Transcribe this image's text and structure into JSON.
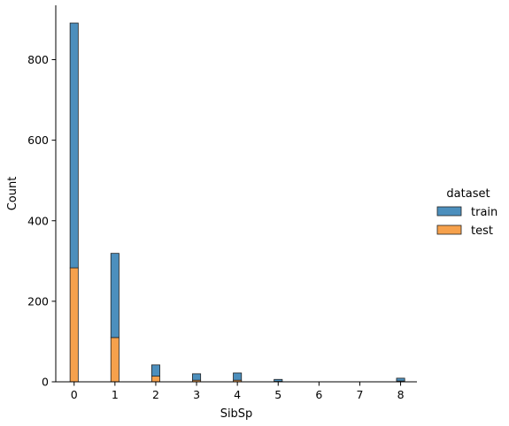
{
  "chart_data": {
    "type": "bar",
    "stacked": true,
    "x": [
      0,
      1,
      2,
      3,
      4,
      5,
      6,
      7,
      8
    ],
    "series": [
      {
        "name": "train",
        "color": "#4c8fbd",
        "values": [
          608,
          209,
          28,
          16,
          18,
          5,
          0,
          0,
          7
        ]
      },
      {
        "name": "test",
        "color": "#f6a14c",
        "values": [
          283,
          110,
          14,
          4,
          4,
          1,
          0,
          0,
          2
        ]
      }
    ],
    "xlabel": "SibSp",
    "ylabel": "Count",
    "xticks": [
      "0",
      "1",
      "2",
      "3",
      "4",
      "5",
      "6",
      "7",
      "8"
    ],
    "yticks": [
      "0",
      "200",
      "400",
      "600",
      "800"
    ],
    "ylim": [
      0,
      935
    ],
    "xlim": [
      -0.45,
      8.4
    ],
    "legend": {
      "title": "dataset",
      "placement": "right",
      "entries": [
        "train",
        "test"
      ]
    },
    "grid": false
  }
}
